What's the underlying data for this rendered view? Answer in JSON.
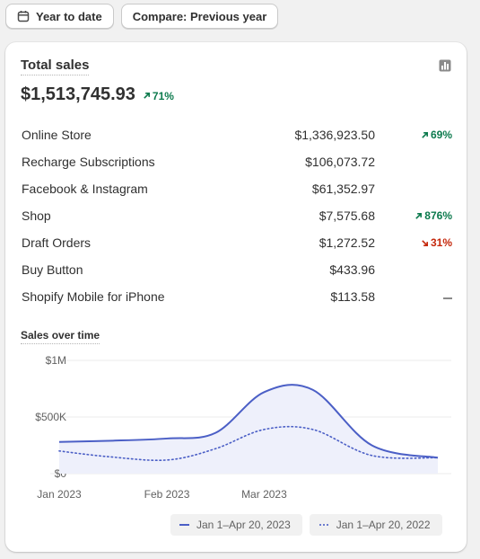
{
  "toolbar": {
    "date_range_label": "Year to date",
    "compare_label": "Compare: Previous year",
    "date_icon": "calendar-icon"
  },
  "card": {
    "title": "Total sales",
    "icon": "bar-chart-icon",
    "total": "$1,513,745.93",
    "total_change": "71%",
    "total_change_direction": "up"
  },
  "breakdown": [
    {
      "name": "Online Store",
      "value": "$1,336,923.50",
      "change": "69%",
      "direction": "up"
    },
    {
      "name": "Recharge Subscriptions",
      "value": "$106,073.72",
      "change": "",
      "direction": "none"
    },
    {
      "name": "Facebook & Instagram",
      "value": "$61,352.97",
      "change": "",
      "direction": "none"
    },
    {
      "name": "Shop",
      "value": "$7,575.68",
      "change": "876%",
      "direction": "up"
    },
    {
      "name": "Draft Orders",
      "value": "$1,272.52",
      "change": "31%",
      "direction": "down"
    },
    {
      "name": "Buy Button",
      "value": "$433.96",
      "change": "",
      "direction": "none"
    },
    {
      "name": "Shopify Mobile for iPhone",
      "value": "$113.58",
      "change": "",
      "direction": "dash"
    }
  ],
  "colors": {
    "up": "#0c7a4d",
    "down": "#c5280c",
    "series": "#4b5fc6",
    "series_fill": "#eef0fb"
  },
  "chart_data": {
    "type": "line",
    "title": "Sales over time",
    "x": [
      "2023-01-01",
      "2023-01-15",
      "2023-02-01",
      "2023-02-15",
      "2023-03-01",
      "2023-03-15",
      "2023-04-01",
      "2023-04-20"
    ],
    "x_tick_labels": [
      "Jan 2023",
      "Feb 2023",
      "Mar 2023"
    ],
    "y_tick_labels": [
      "$0",
      "$500K",
      "$1M"
    ],
    "ylim": [
      0,
      1000000
    ],
    "series": [
      {
        "name": "Jan 1–Apr 20, 2023",
        "style": "solid",
        "values": [
          280000,
          290000,
          310000,
          360000,
          720000,
          740000,
          250000,
          140000
        ]
      },
      {
        "name": "Jan 1–Apr 20, 2022",
        "style": "dotted",
        "values": [
          200000,
          150000,
          120000,
          220000,
          390000,
          390000,
          160000,
          140000
        ]
      }
    ],
    "grid": true,
    "legend_position": "bottom"
  }
}
